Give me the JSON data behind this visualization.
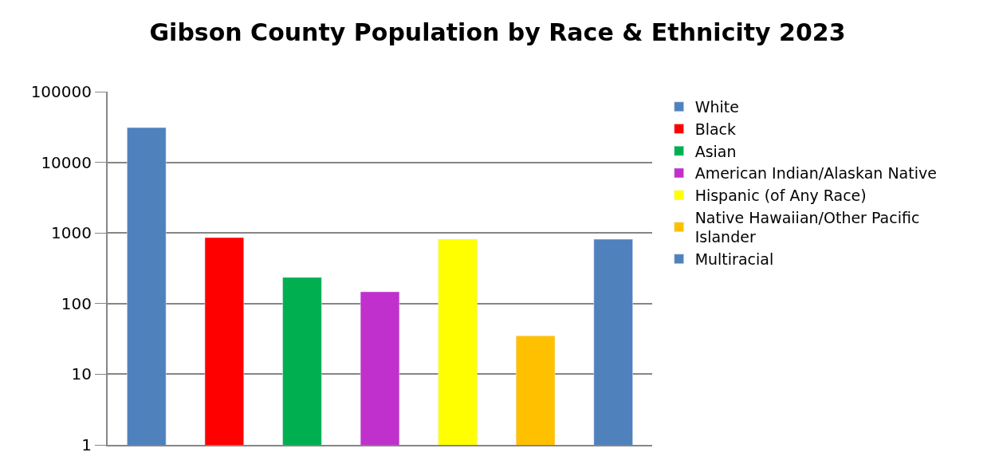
{
  "chart_data": {
    "type": "bar",
    "title": "Gibson County Population by Race & Ethnicity 2023",
    "categories": [
      null,
      null,
      null,
      null,
      null,
      null,
      null
    ],
    "series": [
      {
        "name": "White",
        "color": "#4f81bd",
        "values": [
          31000,
          null,
          null,
          null,
          null,
          null,
          null
        ]
      },
      {
        "name": "Black",
        "color": "#ff0000",
        "values": [
          null,
          860,
          null,
          null,
          null,
          null,
          null
        ]
      },
      {
        "name": "Asian",
        "color": "#00b050",
        "values": [
          null,
          null,
          235,
          null,
          null,
          null,
          null
        ]
      },
      {
        "name": "American Indian/Alaskan Native",
        "color": "#c030cc",
        "values": [
          null,
          null,
          null,
          147,
          null,
          null,
          null
        ]
      },
      {
        "name": "Hispanic (of Any Race)",
        "color": "#ffff00",
        "values": [
          null,
          null,
          null,
          null,
          815,
          null,
          null
        ]
      },
      {
        "name": "Native Hawaiian/Other Pacific Islander",
        "color": "#ffc000",
        "values": [
          null,
          null,
          null,
          null,
          null,
          35,
          null
        ]
      },
      {
        "name": "Multiracial",
        "color": "#4f81bd",
        "values": [
          null,
          null,
          null,
          null,
          null,
          null,
          815
        ]
      }
    ],
    "log": true,
    "ylim": [
      1,
      100000
    ],
    "yticks": [
      1,
      10,
      100,
      1000,
      10000,
      100000
    ],
    "grid": "y",
    "legend": "right",
    "tick_labels": "y"
  }
}
